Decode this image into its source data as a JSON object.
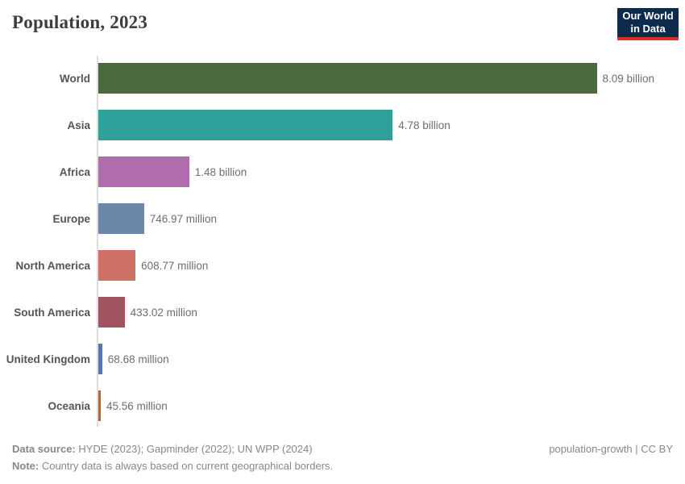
{
  "header": {
    "logo": {
      "line1": "Our World",
      "line2": "in Data",
      "bg_color": "#0D2C4D",
      "accent_color": "#DC2E32"
    }
  },
  "chart_data": {
    "type": "bar",
    "orientation": "horizontal",
    "title": "Population, 2023",
    "xlabel": "",
    "ylabel": "",
    "grid": false,
    "legend": false,
    "xlim_millions": [
      0,
      8090
    ],
    "categories": [
      "World",
      "Asia",
      "Africa",
      "Europe",
      "North America",
      "South America",
      "United Kingdom",
      "Oceania"
    ],
    "values_millions": [
      8090,
      4780,
      1480,
      746.97,
      608.77,
      433.02,
      68.68,
      45.56
    ],
    "value_labels": [
      "8.09 billion",
      "4.78 billion",
      "1.48 billion",
      "746.97 million",
      "608.77 million",
      "433.02 million",
      "68.68 million",
      "45.56 million"
    ],
    "bar_colors": [
      "#4B683F",
      "#2FA09A",
      "#B06CAC",
      "#6D87AB",
      "#CC7164",
      "#A0555E",
      "#5879A8",
      "#A9654B"
    ],
    "axis_line_color": "#dddddd"
  },
  "footer": {
    "datasource_label": "Data source:",
    "datasource_text": " HYDE (2023); Gapminder (2022); UN WPP (2024)",
    "note_label": "Note:",
    "note_text": " Country data is always based on current geographical borders.",
    "right_text": "population-growth | CC BY"
  }
}
